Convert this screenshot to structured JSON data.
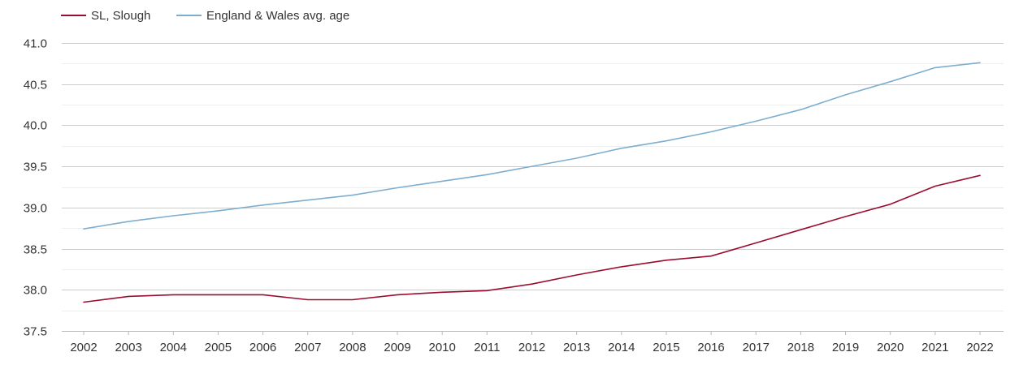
{
  "chart_data": {
    "type": "line",
    "title": "",
    "xlabel": "",
    "ylabel": "",
    "x": [
      "2002",
      "2003",
      "2004",
      "2005",
      "2006",
      "2007",
      "2008",
      "2009",
      "2010",
      "2011",
      "2012",
      "2013",
      "2014",
      "2015",
      "2016",
      "2017",
      "2018",
      "2019",
      "2020",
      "2021",
      "2022"
    ],
    "ylim": [
      37.5,
      41.0
    ],
    "yticks": [
      "37.5",
      "38.0",
      "38.5",
      "39.0",
      "39.5",
      "40.0",
      "40.5",
      "41.0"
    ],
    "grid": true,
    "legend_position": "top-left",
    "series": [
      {
        "name": "SL, Slough",
        "color": "#9b0d2e",
        "values": [
          37.85,
          37.92,
          37.94,
          37.94,
          37.94,
          37.88,
          37.88,
          37.94,
          37.97,
          37.99,
          38.07,
          38.18,
          38.28,
          38.36,
          38.41,
          38.57,
          38.73,
          38.89,
          39.04,
          39.26,
          39.39
        ]
      },
      {
        "name": "England & Wales avg. age",
        "color": "#7eaecf",
        "values": [
          38.74,
          38.83,
          38.9,
          38.96,
          39.03,
          39.09,
          39.15,
          39.24,
          39.32,
          39.4,
          39.5,
          39.6,
          39.72,
          39.81,
          39.92,
          40.05,
          40.19,
          40.37,
          40.53,
          40.7,
          40.76
        ]
      }
    ]
  }
}
